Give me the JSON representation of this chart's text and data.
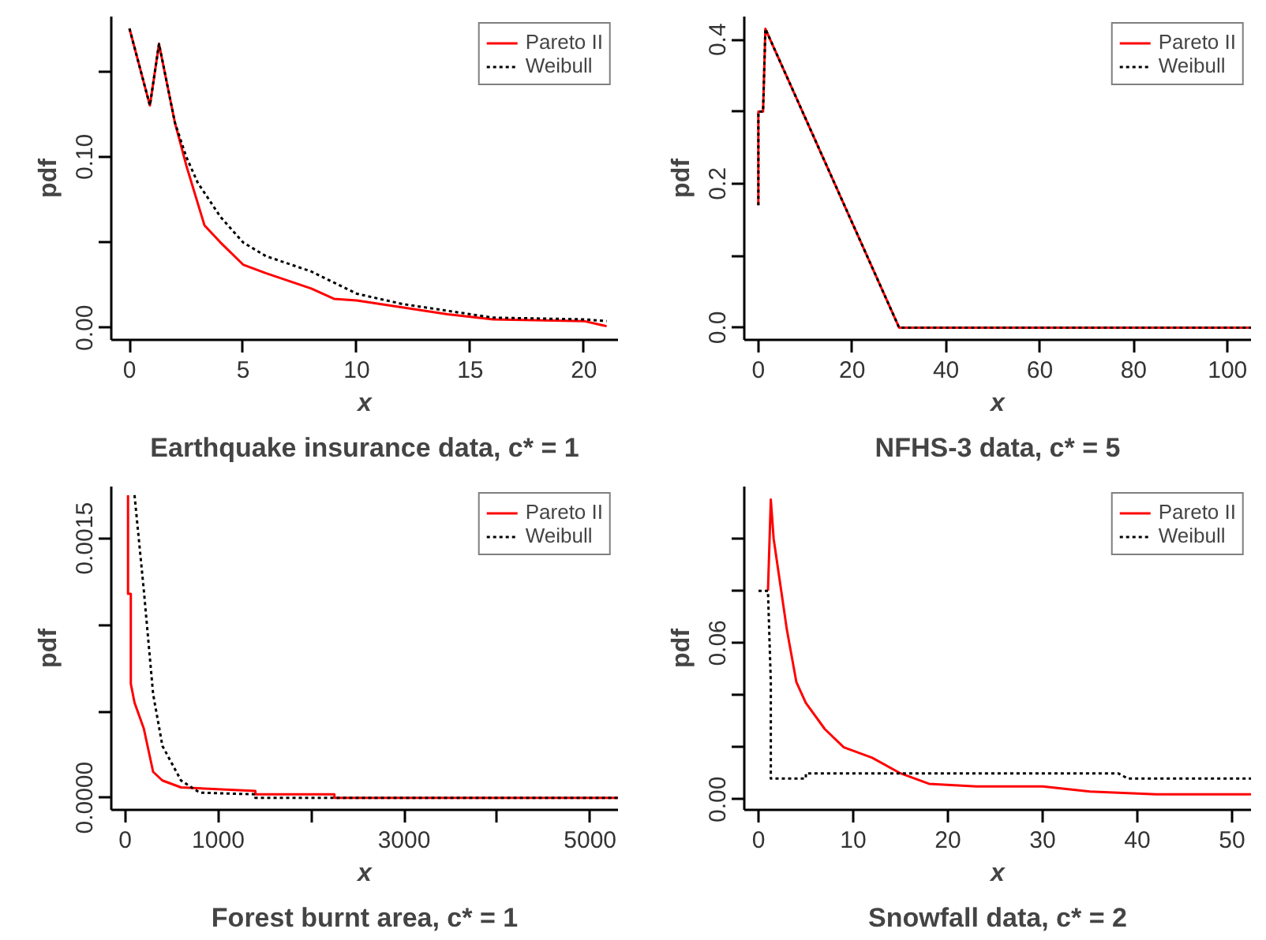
{
  "chart_data": [
    {
      "type": "line",
      "title": "Earthquake insurance data, c* = 1",
      "xlabel": "x",
      "ylabel": "pdf",
      "xlim": [
        -0.8,
        21.5
      ],
      "ylim": [
        -0.007,
        0.182
      ],
      "xticks": [
        0,
        5,
        10,
        15,
        20
      ],
      "yticks": [
        {
          "value": 0,
          "label": "0.00"
        },
        {
          "value": 0.05,
          "label": null
        },
        {
          "value": 0.1,
          "label": "0.10"
        },
        {
          "value": 0.15,
          "label": null
        }
      ],
      "legend": "top right",
      "series": [
        {
          "name": "Pareto II",
          "color": "#ff0000",
          "line_style": "solid",
          "x": [
            0,
            0.9,
            1.3,
            2,
            2.5,
            3.3,
            4,
            5,
            6,
            8,
            9,
            10,
            12,
            14,
            16,
            20,
            21
          ],
          "values": [
            0.175,
            0.13,
            0.166,
            0.12,
            0.095,
            0.06,
            0.05,
            0.037,
            0.032,
            0.023,
            0.017,
            0.016,
            0.012,
            0.008,
            0.005,
            0.004,
            0.001
          ]
        },
        {
          "name": "Weibull",
          "color": "#000000",
          "line_style": "dotted",
          "x": [
            0,
            0.9,
            1.3,
            2,
            2.5,
            3,
            4,
            5,
            6,
            8,
            10,
            12,
            14,
            16,
            20,
            21
          ],
          "values": [
            0.175,
            0.13,
            0.166,
            0.12,
            0.1,
            0.085,
            0.065,
            0.05,
            0.042,
            0.033,
            0.02,
            0.014,
            0.01,
            0.006,
            0.005,
            0.004
          ]
        }
      ]
    },
    {
      "type": "line",
      "title": "NFHS-3 data, c* = 5",
      "xlabel": "x",
      "ylabel": "pdf",
      "xlim": [
        -3,
        105
      ],
      "ylim": [
        -0.017,
        0.432
      ],
      "xticks": [
        0,
        20,
        40,
        60,
        80,
        100
      ],
      "yticks": [
        {
          "value": 0,
          "label": "0.0"
        },
        {
          "value": 0.1,
          "label": null
        },
        {
          "value": 0.2,
          "label": "0.2"
        },
        {
          "value": 0.3,
          "label": null
        },
        {
          "value": 0.4,
          "label": "0.4"
        }
      ],
      "legend": "top right",
      "series": [
        {
          "name": "Pareto II",
          "color": "#ff0000",
          "line_style": "solid",
          "x": [
            0,
            0,
            1,
            1.5,
            30,
            105
          ],
          "values": [
            0.17,
            0.3,
            0.3,
            0.415,
            0.0,
            0.0
          ]
        },
        {
          "name": "Weibull",
          "color": "#000000",
          "line_style": "dotted",
          "x": [
            0,
            0,
            1,
            1.5,
            30,
            105
          ],
          "values": [
            0.17,
            0.3,
            0.3,
            0.415,
            0.0,
            0.0
          ]
        }
      ]
    },
    {
      "type": "line",
      "title": "Forest burnt area, c* = 1",
      "xlabel": "x",
      "ylabel": "pdf",
      "xlim": [
        -150,
        5300
      ],
      "ylim": [
        -7e-05,
        0.0018
      ],
      "xticks": [
        0,
        1000,
        {
          "value": 2000,
          "label": null
        },
        3000,
        {
          "value": 4000,
          "label": null
        },
        5000
      ],
      "yticks": [
        {
          "value": 0,
          "label": "0.0000"
        },
        {
          "value": 0.0005,
          "label": null
        },
        {
          "value": 0.001,
          "label": null
        },
        {
          "value": 0.0015,
          "label": "0.0015"
        }
      ],
      "legend": "top right",
      "series": [
        {
          "name": "Pareto II",
          "color": "#ff0000",
          "line_style": "solid",
          "x": [
            30,
            30,
            60,
            60,
            100,
            200,
            300,
            400,
            600,
            1400,
            1400,
            2250,
            2250,
            5300
          ],
          "values": [
            0.00175,
            0.00118,
            0.00118,
            0.00066,
            0.00055,
            0.0004,
            0.00015,
            0.0001,
            6e-05,
            4e-05,
            2e-05,
            2e-05,
            0,
            0
          ]
        },
        {
          "name": "Weibull",
          "color": "#000000",
          "line_style": "dotted",
          "x": [
            100,
            200,
            300,
            400,
            600,
            800,
            1400,
            1400,
            5300
          ],
          "values": [
            0.00175,
            0.0012,
            0.0006,
            0.0003,
            0.0001,
            3e-05,
            2e-05,
            0,
            0
          ]
        }
      ]
    },
    {
      "type": "line",
      "title": "Snowfall data, c* = 2",
      "xlabel": "x",
      "ylabel": "pdf",
      "xlim": [
        -1.5,
        52
      ],
      "ylim": [
        -0.004,
        0.12
      ],
      "xticks": [
        0,
        10,
        20,
        30,
        40,
        50
      ],
      "yticks": [
        {
          "value": 0,
          "label": "0.00"
        },
        {
          "value": 0.02,
          "label": null
        },
        {
          "value": 0.04,
          "label": null
        },
        {
          "value": 0.06,
          "label": "0.06"
        },
        {
          "value": 0.08,
          "label": null
        },
        {
          "value": 0.1,
          "label": null
        }
      ],
      "legend": "top right",
      "series": [
        {
          "name": "Pareto II",
          "color": "#ff0000",
          "line_style": "solid",
          "x": [
            1,
            1.3,
            1.6,
            2,
            3,
            4,
            5,
            7,
            9,
            12,
            15,
            18,
            23,
            30,
            35,
            42,
            52
          ],
          "values": [
            0.08,
            0.115,
            0.1,
            0.09,
            0.065,
            0.045,
            0.037,
            0.027,
            0.02,
            0.016,
            0.01,
            0.006,
            0.005,
            0.005,
            0.003,
            0.002,
            0.002
          ]
        },
        {
          "name": "Weibull",
          "color": "#000000",
          "line_style": "dotted",
          "x": [
            0,
            1,
            1.3,
            1.3,
            5,
            5,
            38,
            39,
            52
          ],
          "values": [
            0.08,
            0.08,
            0.045,
            0.008,
            0.008,
            0.01,
            0.01,
            0.008,
            0.008
          ]
        }
      ]
    }
  ]
}
